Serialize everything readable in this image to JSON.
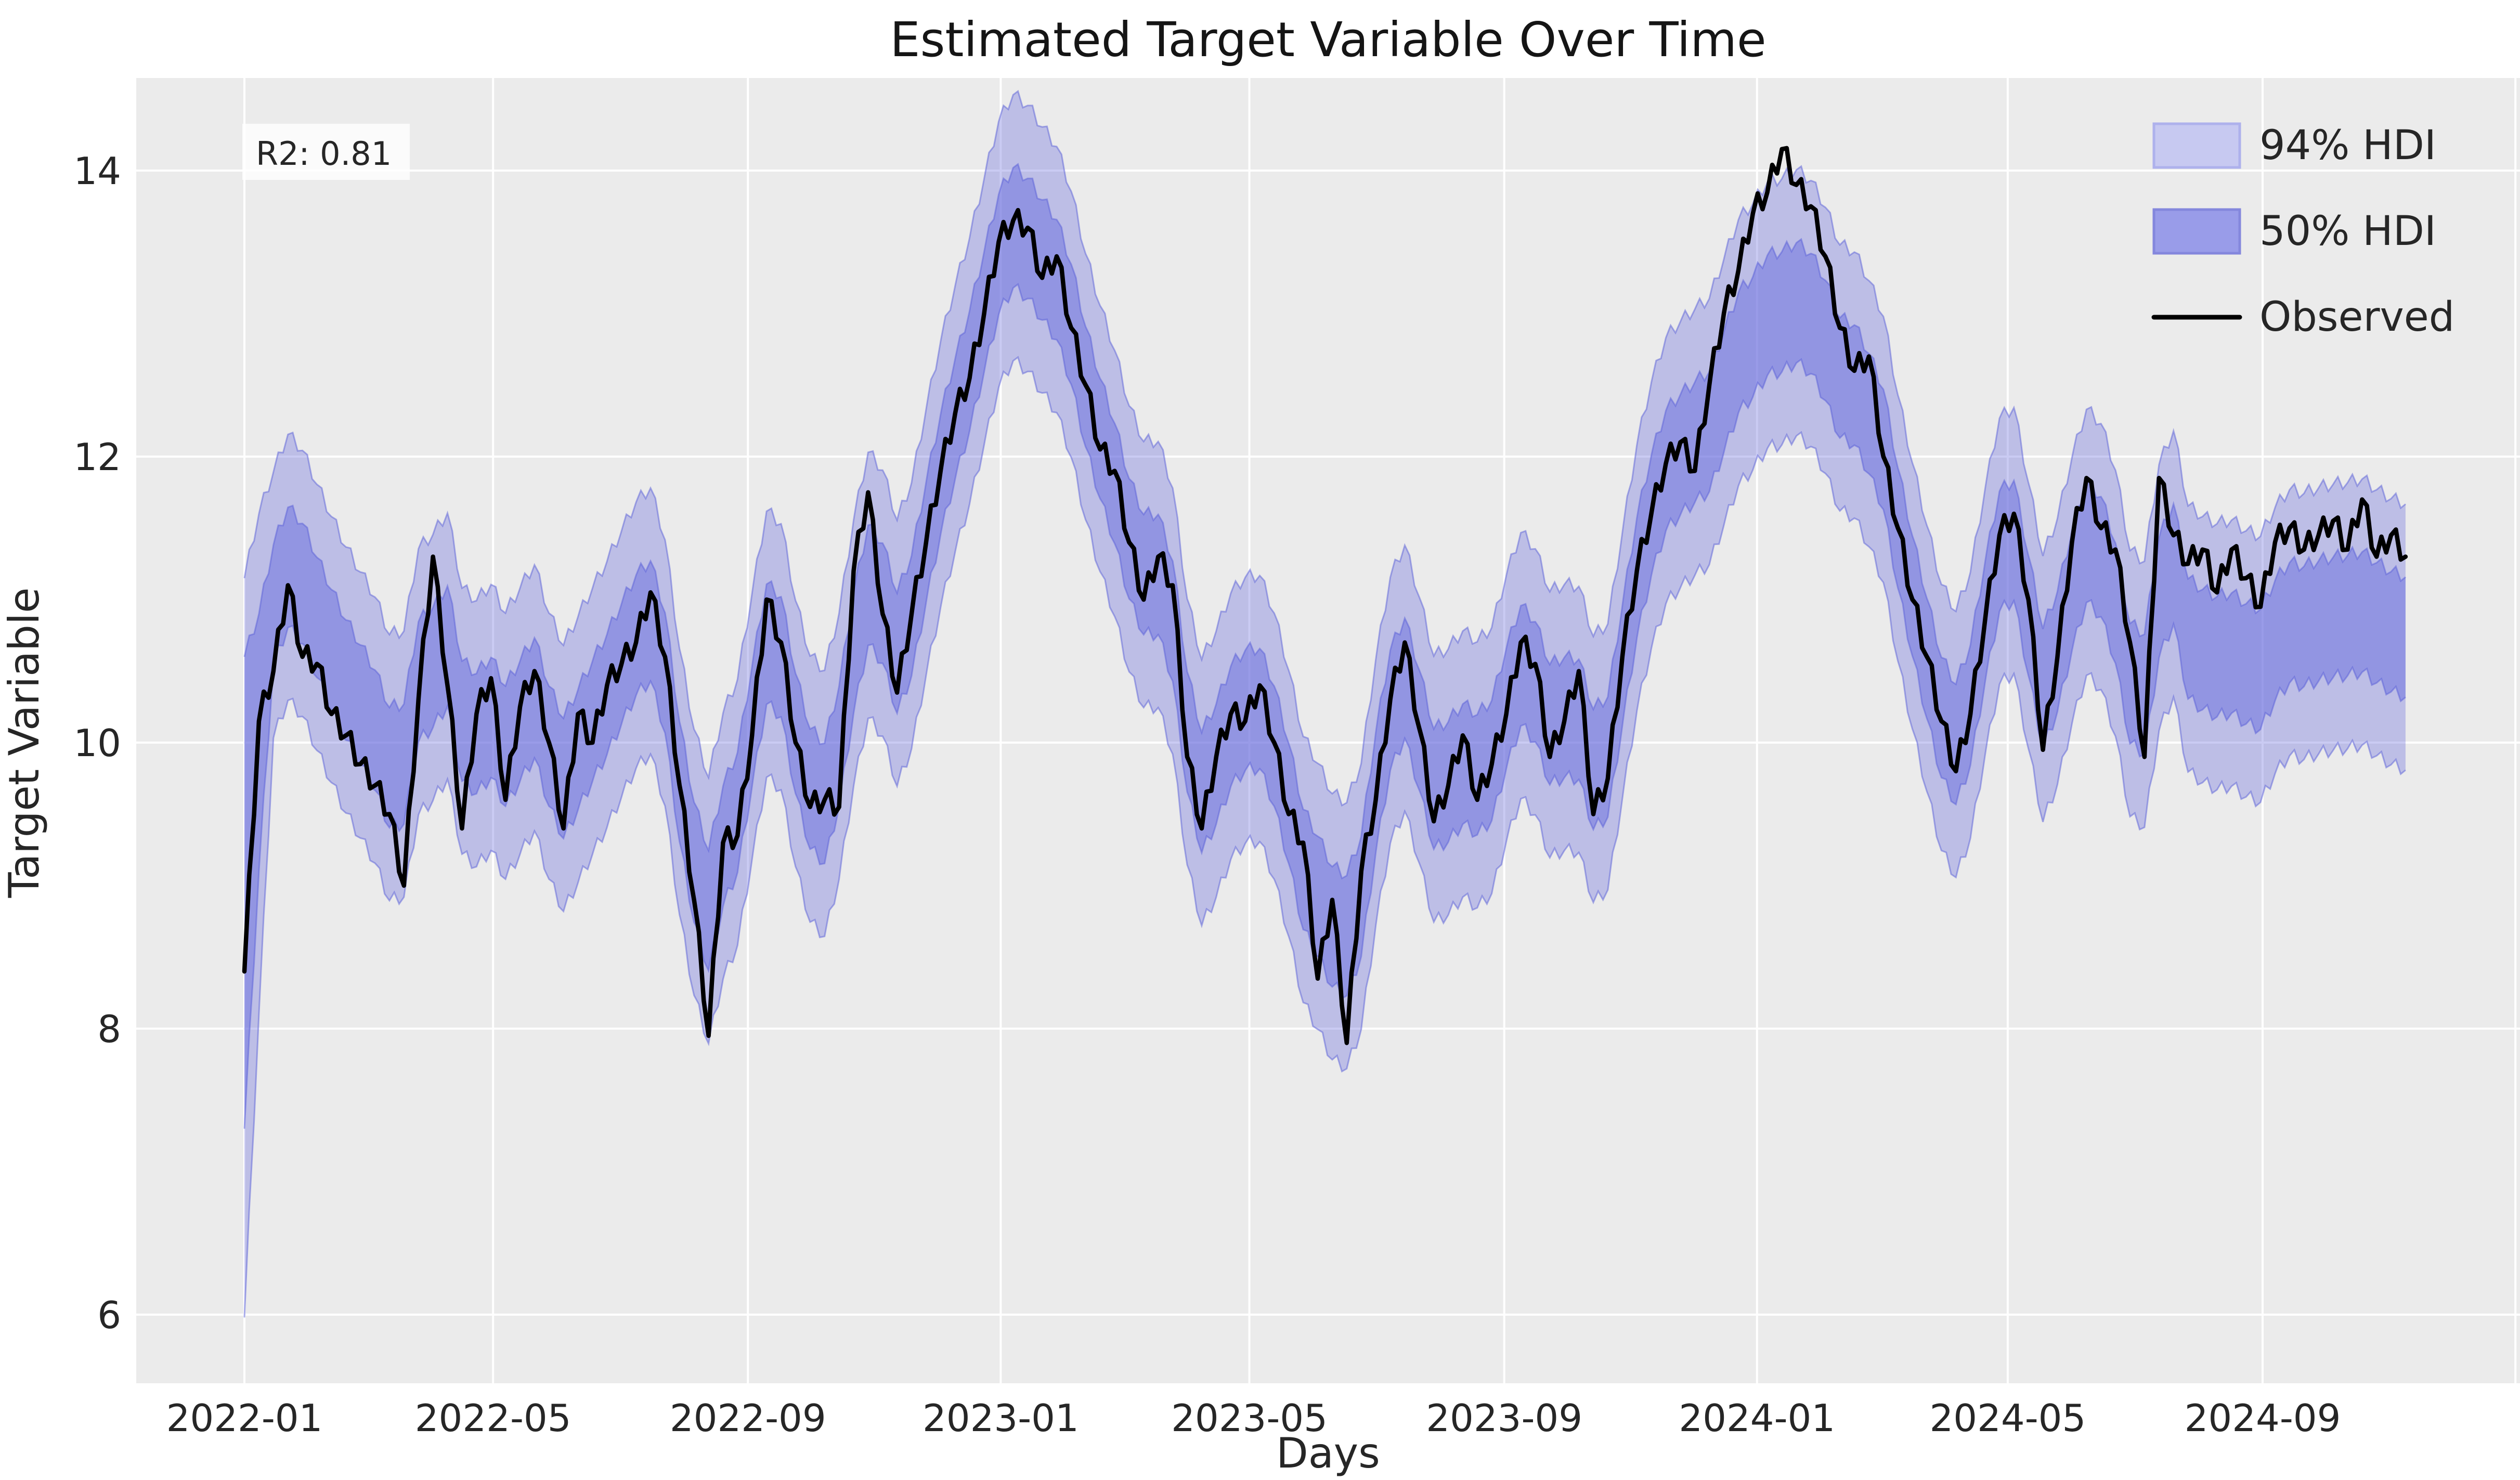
{
  "chart": {
    "title": "Estimated Target Variable Over Time",
    "xlabel": "Days",
    "ylabel": "Target Variable",
    "annotation_r2": "R2: 0.81",
    "legend": {
      "hdi94_label": "94% HDI",
      "hdi50_label": "50% HDI",
      "observed_label": "Observed"
    },
    "x_tick_labels": [
      "2022-01",
      "2022-05",
      "2022-09",
      "2023-01",
      "2023-05",
      "2023-09",
      "2024-01",
      "2024-05",
      "2024-09"
    ],
    "x_tick_dates": [
      "2022-01-01",
      "2022-05-01",
      "2022-09-01",
      "2023-01-01",
      "2023-05-01",
      "2023-09-01",
      "2024-01-01",
      "2024-05-01",
      "2024-09-01"
    ],
    "x_gridline_extra_dates": [
      "2025-01-01"
    ],
    "y_tick_labels": [
      "6",
      "8",
      "10",
      "12",
      "14"
    ],
    "y_tick_values": [
      6,
      8,
      10,
      12,
      14
    ],
    "colors": {
      "figure_background": "#ffffff",
      "plot_background": "#ebebeb",
      "gridline": "#ffffff",
      "observed_line": "#000000",
      "hdi_base": "#6c70de",
      "hdi94_fill": "rgba(108,112,222,0.36)",
      "hdi50_fill": "rgba(108,112,222,0.52)",
      "hdi_edge": "rgba(90,95,215,0.5)",
      "legend_patch94_fill": "#c7c9f1",
      "legend_patch94_stroke": "#aeb1ec",
      "legend_patch50_fill": "#999ce9",
      "legend_patch50_stroke": "#8487dd",
      "annotation_box_fill": "rgba(255,255,255,0.8)",
      "text": "#262626"
    }
  },
  "chart_data": {
    "type": "line",
    "title": "Estimated Target Variable Over Time",
    "xlabel": "Days",
    "ylabel": "Target Variable",
    "r2": 0.81,
    "x_start_date": "2022-01-01",
    "x_interval_days": 7,
    "n_points": 150,
    "x_end_date": "2024-11-09",
    "xlim_dates_approx": [
      "2021-11-10",
      "2025-01-03"
    ],
    "ylim_approx": [
      5.5,
      14.65
    ],
    "grid": true,
    "legend_position": "upper right",
    "series": [
      {
        "name": "Observed",
        "color": "#000000",
        "values": [
          8.4,
          10.15,
          10.5,
          11.1,
          10.6,
          10.55,
          10.2,
          10.05,
          9.85,
          9.7,
          9.5,
          9.0,
          10.3,
          11.3,
          10.4,
          9.4,
          10.2,
          10.45,
          9.6,
          10.25,
          10.5,
          10.0,
          9.4,
          10.2,
          10.0,
          10.4,
          10.55,
          10.7,
          11.05,
          10.6,
          9.7,
          8.9,
          7.95,
          9.3,
          9.35,
          10.05,
          11.0,
          10.7,
          10.0,
          9.55,
          9.6,
          9.55,
          11.2,
          11.75,
          10.9,
          10.35,
          10.9,
          11.4,
          11.9,
          12.3,
          12.55,
          13.0,
          13.5,
          13.65,
          13.6,
          13.25,
          13.4,
          12.9,
          12.5,
          12.05,
          11.9,
          11.4,
          11.0,
          11.3,
          11.1,
          9.9,
          9.4,
          9.9,
          10.2,
          10.15,
          10.4,
          10.0,
          9.5,
          9.3,
          8.35,
          8.9,
          7.9,
          9.1,
          9.6,
          10.3,
          10.7,
          10.1,
          9.45,
          9.7,
          10.05,
          9.6,
          9.85,
          10.2,
          10.7,
          10.55,
          9.9,
          10.15,
          10.5,
          9.5,
          9.75,
          10.6,
          11.2,
          11.6,
          11.95,
          12.1,
          11.9,
          12.5,
          13.0,
          13.3,
          13.7,
          13.85,
          14.15,
          13.9,
          13.75,
          13.4,
          12.9,
          12.6,
          12.7,
          12.0,
          11.5,
          11.0,
          10.6,
          10.15,
          9.8,
          10.2,
          10.85,
          11.45,
          11.6,
          11.0,
          9.95,
          10.6,
          11.4,
          11.85,
          11.5,
          11.35,
          10.7,
          9.9,
          11.85,
          11.45,
          11.25,
          11.35,
          11.05,
          11.35,
          11.15,
          10.95,
          11.4,
          11.5,
          11.35,
          11.45,
          11.55,
          11.35,
          11.7,
          11.3,
          11.45,
          11.3
        ]
      }
    ],
    "hdi_bands": {
      "color": "#6c70de",
      "hdi94": {
        "label": "94% HDI",
        "half_width": 0.93
      },
      "hdi50": {
        "label": "50% HDI",
        "half_width": 0.42
      },
      "center_rule": "weighted moving average (0.25,0.5,0.25) of Observed plus regional offset",
      "center_offsets": [
        {
          "from": "2022-01-15",
          "to": "2022-03-19",
          "offset": 0.4
        },
        {
          "from": "2022-03-26",
          "to": "2022-03-26",
          "offset": 0.2
        },
        {
          "from": "2022-04-02",
          "to": "2022-04-02",
          "offset": -0.3
        },
        {
          "from": "2022-04-09",
          "to": "2022-04-16",
          "offset": 0.3
        },
        {
          "from": "2022-08-06",
          "to": "2022-08-20",
          "offset": 0.3
        },
        {
          "from": "2022-10-22",
          "to": "2022-10-29",
          "offset": -0.3
        },
        {
          "from": "2023-06-03",
          "to": "2023-06-17",
          "offset": 0.2
        },
        {
          "from": "2023-12-09",
          "to": "2023-12-15",
          "offset": -0.3
        },
        {
          "from": "2023-12-16",
          "to": "2023-12-22",
          "offset": -0.5
        },
        {
          "from": "2023-12-23",
          "to": "2023-12-29",
          "offset": -0.6
        },
        {
          "from": "2023-12-30",
          "to": "2024-01-05",
          "offset": -0.8
        },
        {
          "from": "2024-01-06",
          "to": "2024-01-12",
          "offset": -0.9
        },
        {
          "from": "2024-01-13",
          "to": "2024-01-19",
          "offset": -1.0
        },
        {
          "from": "2024-01-20",
          "to": "2024-01-26",
          "offset": -0.85
        },
        {
          "from": "2024-01-27",
          "to": "2024-02-02",
          "offset": -0.7
        },
        {
          "from": "2024-02-03",
          "to": "2024-02-09",
          "offset": -0.55
        },
        {
          "from": "2024-02-10",
          "to": "2024-02-16",
          "offset": -0.4
        },
        {
          "from": "2024-02-17",
          "to": "2024-02-24",
          "offset": -0.2
        },
        {
          "from": "2024-06-01",
          "to": "2024-07-26",
          "offset": -0.25
        },
        {
          "from": "2024-07-27",
          "to": "2024-11-09",
          "offset": -0.6
        }
      ],
      "start_funnel_overrides": [
        {
          "index": 0,
          "lo94": 5.98,
          "lo50": 7.3,
          "hi50": 10.6,
          "hi94": 11.15
        },
        {
          "index": 1,
          "lo94": 8.1,
          "lo50": 9.1,
          "hi50": 10.9,
          "hi94": 11.6
        }
      ]
    }
  }
}
